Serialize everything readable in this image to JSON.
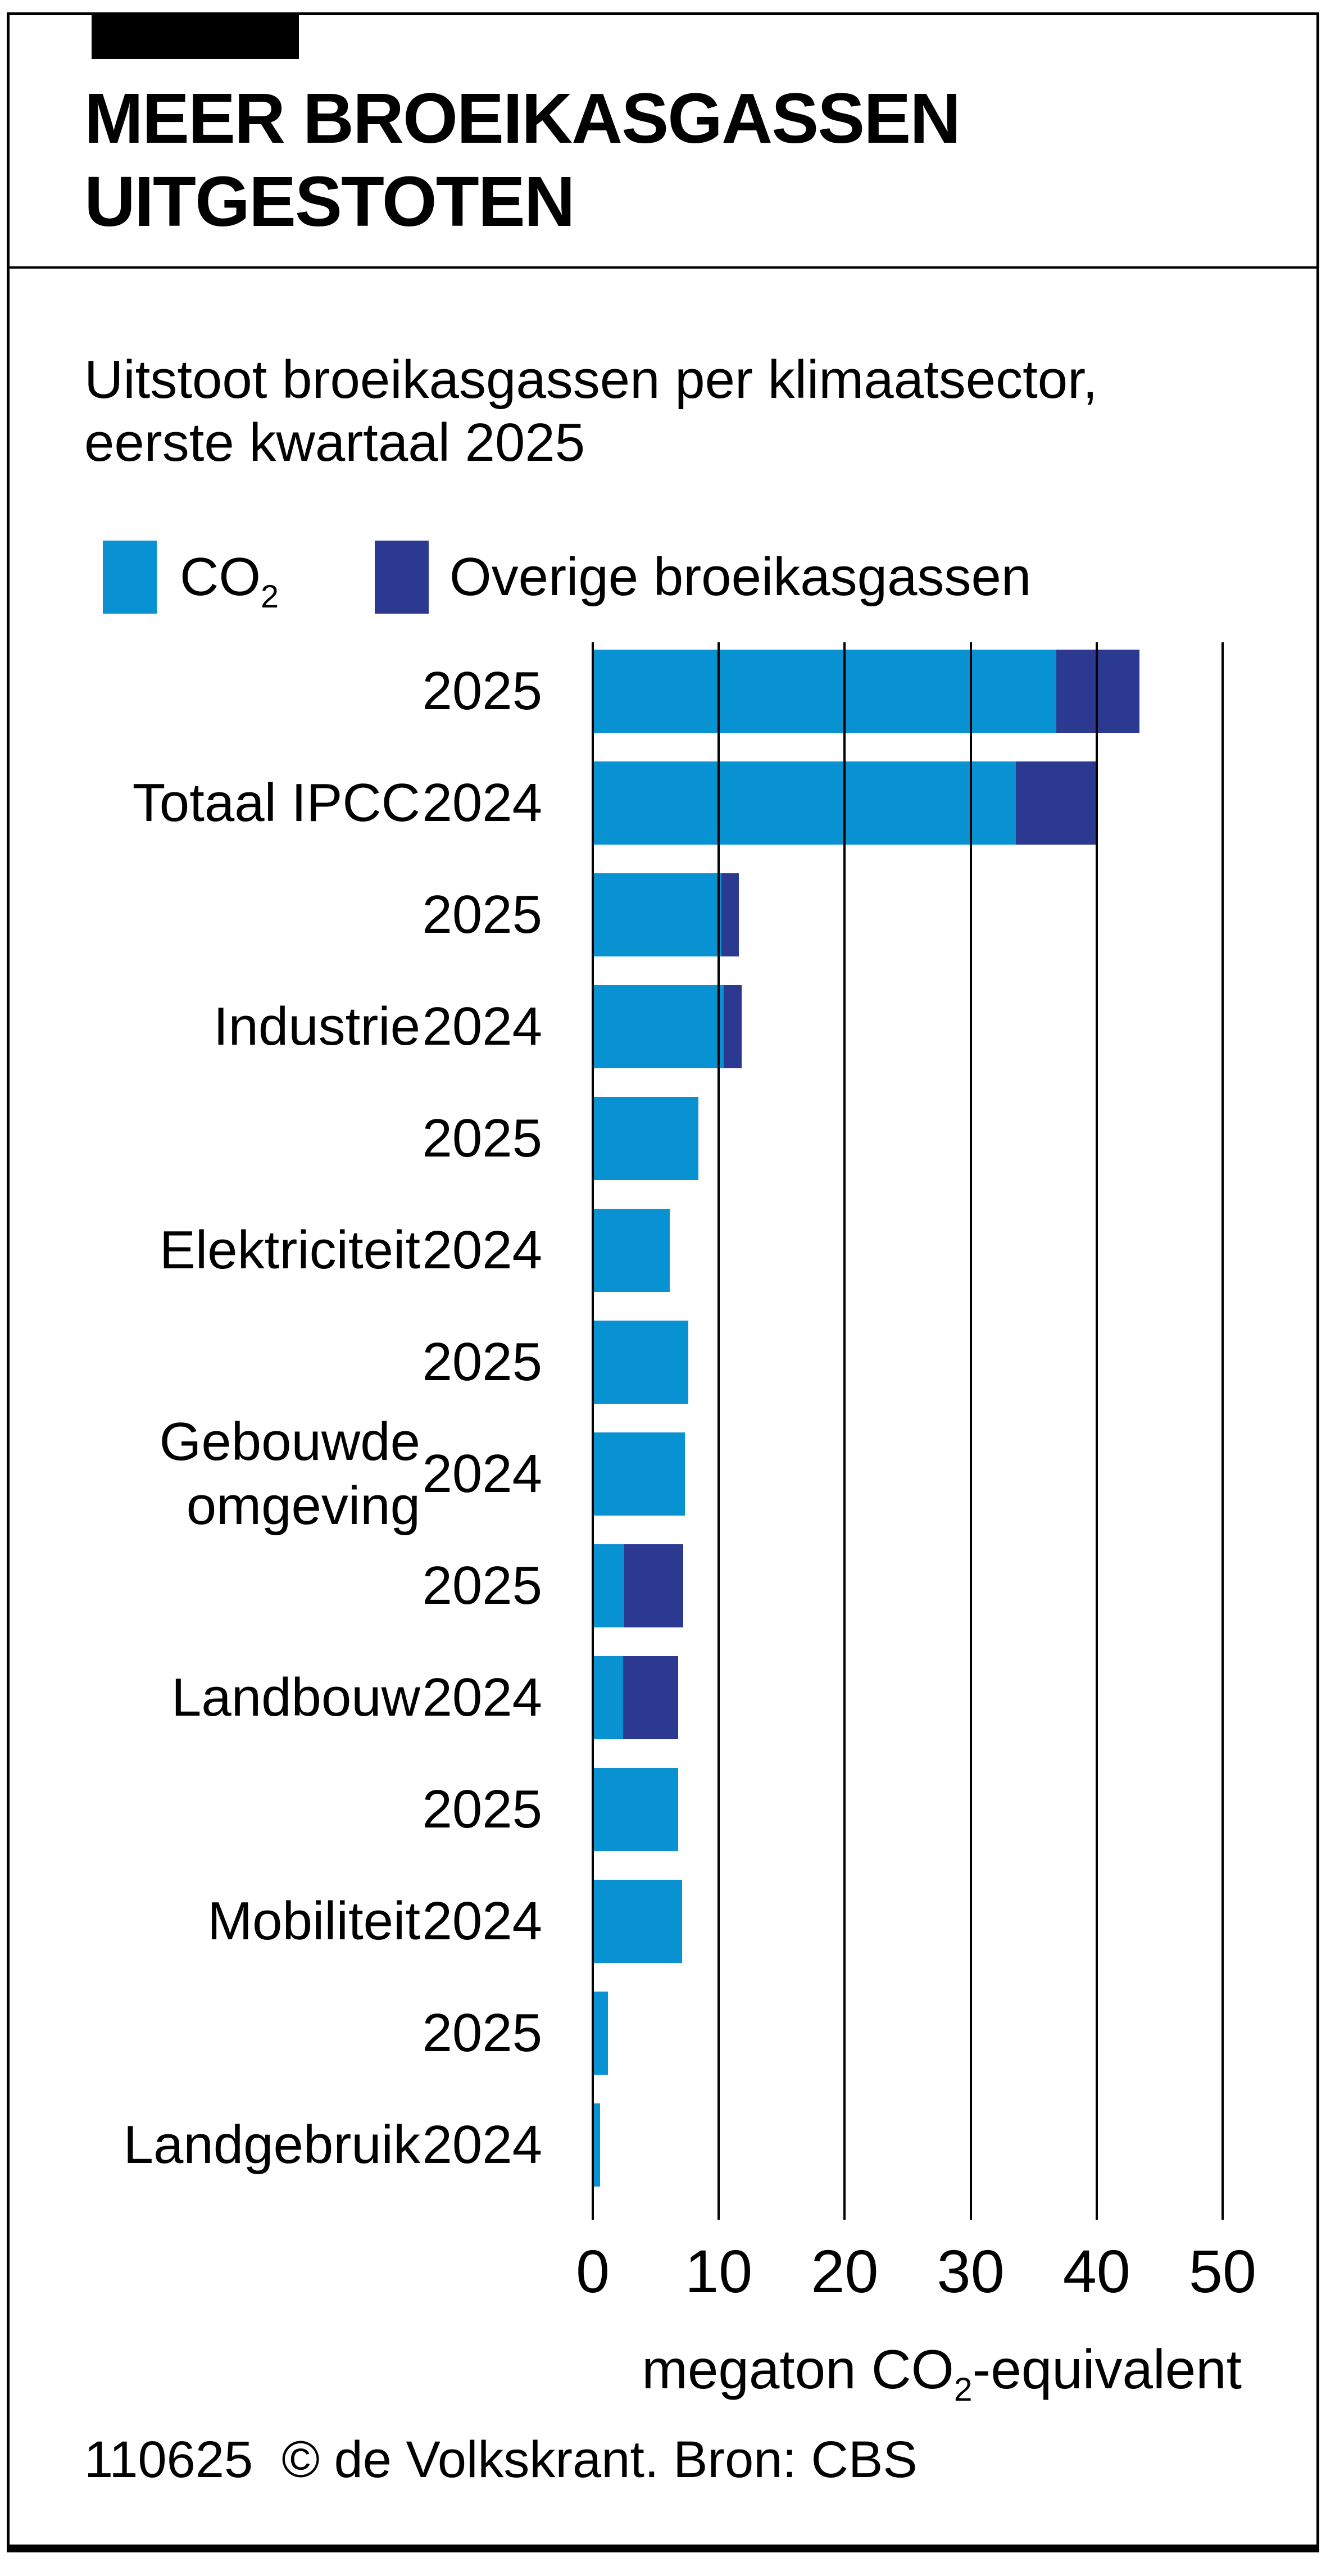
{
  "header": {
    "title_line1": "MEER BROEIKASGASSEN",
    "title_line2": "UITGESTOTEN"
  },
  "subtitle_line1": "Uitstoot broeikasgassen per klimaatsector,",
  "subtitle_line2": "eerste kwartaal 2025",
  "legend": {
    "co2_base": "CO",
    "co2_sub": "2",
    "other_label": "Overige broeikasgassen"
  },
  "colors": {
    "co2": "#0992d2",
    "other": "#2b3a90",
    "grid": "#000000"
  },
  "x_axis": {
    "tick_labels": [
      "0",
      "10",
      "20",
      "30",
      "40",
      "50"
    ],
    "label_pre": "megaton CO",
    "label_sub": "2",
    "label_post": "-equivalent"
  },
  "footer_credit": "110625  © de Volkskrant. Bron: CBS",
  "chart_data": {
    "type": "bar",
    "orientation": "horizontal",
    "stacked": true,
    "title": "MEER BROEIKASGASSEN UITGESTOTEN",
    "subtitle": "Uitstoot broeikasgassen per klimaatsector, eerste kwartaal 2025",
    "xlabel": "megaton CO2-equivalent",
    "xlim": [
      0,
      50
    ],
    "xticks": [
      0,
      10,
      20,
      30,
      40,
      50
    ],
    "grid": "vertical-only",
    "legend_position": "top",
    "series_names": [
      "CO2",
      "Overige broeikasgassen"
    ],
    "groups": [
      {
        "sector": "Totaal IPCC",
        "label_lines": [
          "Totaal IPCC"
        ],
        "bars": [
          {
            "year": "2025",
            "co2": 36.8,
            "other": 6.6
          },
          {
            "year": "2024",
            "co2": 33.6,
            "other": 6.4
          }
        ]
      },
      {
        "sector": "Industrie",
        "label_lines": [
          "Industrie"
        ],
        "bars": [
          {
            "year": "2025",
            "co2": 10.2,
            "other": 1.4
          },
          {
            "year": "2024",
            "co2": 10.4,
            "other": 1.4
          }
        ]
      },
      {
        "sector": "Elektriciteit",
        "label_lines": [
          "Elektriciteit"
        ],
        "bars": [
          {
            "year": "2025",
            "co2": 8.4,
            "other": 0
          },
          {
            "year": "2024",
            "co2": 6.1,
            "other": 0
          }
        ]
      },
      {
        "sector": "Gebouwde omgeving",
        "label_lines": [
          "Gebouwde",
          "omgeving"
        ],
        "bars": [
          {
            "year": "2025",
            "co2": 7.6,
            "other": 0
          },
          {
            "year": "2024",
            "co2": 7.3,
            "other": 0
          }
        ]
      },
      {
        "sector": "Landbouw",
        "label_lines": [
          "Landbouw"
        ],
        "bars": [
          {
            "year": "2025",
            "co2": 2.5,
            "other": 4.7
          },
          {
            "year": "2024",
            "co2": 2.4,
            "other": 4.4
          }
        ]
      },
      {
        "sector": "Mobiliteit",
        "label_lines": [
          "Mobiliteit"
        ],
        "bars": [
          {
            "year": "2025",
            "co2": 6.8,
            "other": 0
          },
          {
            "year": "2024",
            "co2": 7.1,
            "other": 0
          }
        ]
      },
      {
        "sector": "Landgebruik",
        "label_lines": [
          "Landgebruik"
        ],
        "bars": [
          {
            "year": "2025",
            "co2": 1.2,
            "other": 0
          },
          {
            "year": "2024",
            "co2": 0.6,
            "other": 0
          }
        ]
      }
    ]
  }
}
